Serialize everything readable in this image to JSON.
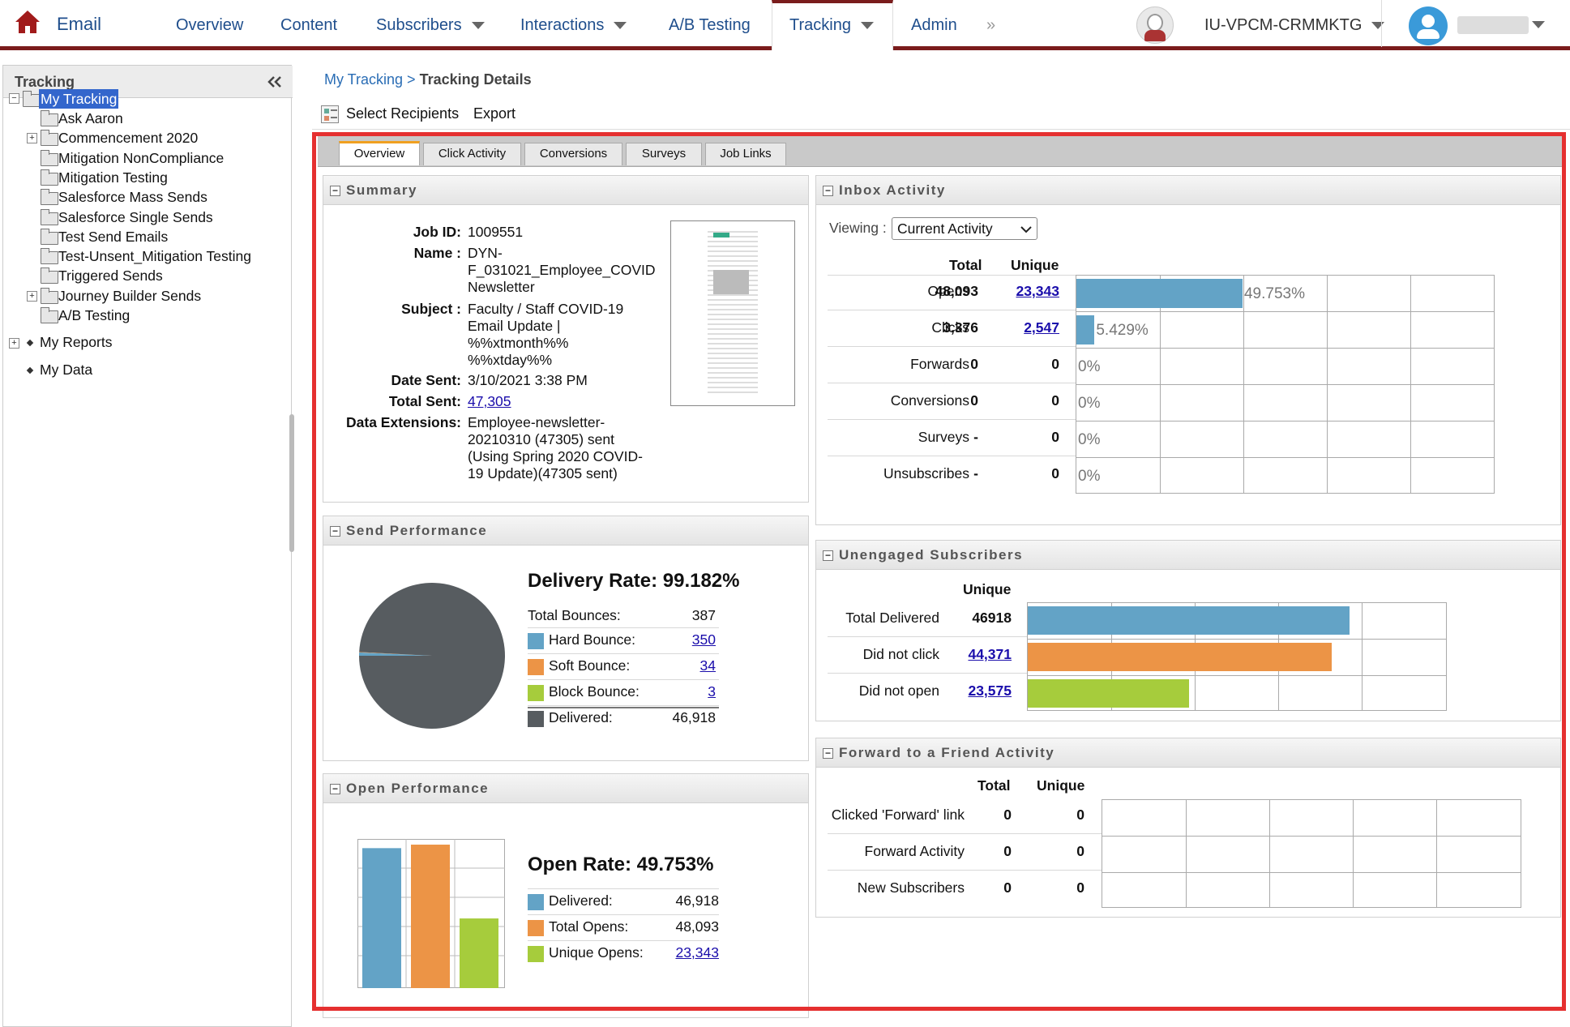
{
  "nav": {
    "app": "Email",
    "items": [
      "Overview",
      "Content",
      "Subscribers",
      "Interactions",
      "A/B Testing",
      "Tracking",
      "Admin"
    ],
    "more": "»",
    "org": "IU-VPCM-CRMMKTG"
  },
  "sidebar": {
    "title": "Tracking",
    "collapse_icon": "double-chevron-left",
    "root": "My Tracking",
    "folders": [
      "Ask Aaron",
      "Commencement 2020",
      "Mitigation NonCompliance",
      "Mitigation Testing",
      "Salesforce Mass Sends",
      "Salesforce Single Sends",
      "Test Send Emails",
      "Test-Unsent_Mitigation Testing",
      "Triggered Sends",
      "Journey Builder Sends",
      "A/B Testing"
    ],
    "reports": "My Reports",
    "data": "My Data"
  },
  "breadcrumb": {
    "link": "My Tracking",
    "sep": ">",
    "current": "Tracking Details"
  },
  "toolbar": {
    "select_recipients": "Select Recipients",
    "export": "Export"
  },
  "tabs": [
    "Overview",
    "Click Activity",
    "Conversions",
    "Surveys",
    "Job Links"
  ],
  "summary": {
    "title": "Summary",
    "job_id_label": "Job ID:",
    "job_id": "1009551",
    "name_label": "Name :",
    "name": [
      "DYN-",
      "F_031021_Employee_COVID",
      "Newsletter"
    ],
    "subject_label": "Subject :",
    "subject": [
      "Faculty / Staff COVID-19",
      "Email Update |",
      "%%xtmonth%%",
      "%%xtday%%"
    ],
    "date_label": "Date Sent:",
    "date": "3/10/2021 3:38 PM",
    "total_label": "Total Sent:",
    "total": "47,305",
    "de_label": "Data Extensions:",
    "de": [
      "Employee-newsletter-",
      "20210310 (47305) sent",
      "(Using Spring 2020 COVID-",
      "19 Update)(47305 sent)"
    ]
  },
  "send_performance": {
    "title": "Send Performance",
    "rate": "Delivery Rate: 99.182%",
    "total_bounces_label": "Total Bounces:",
    "total_bounces": "387",
    "rows": [
      {
        "label": "Hard Bounce:",
        "value": "350",
        "color": "#63a3c6",
        "link": true
      },
      {
        "label": "Soft Bounce:",
        "value": "34",
        "color": "#ec9446",
        "link": true
      },
      {
        "label": "Block Bounce:",
        "value": "3",
        "color": "#a6cc3c",
        "link": true
      },
      {
        "label": "Delivered:",
        "value": "46,918",
        "color": "#575c60",
        "link": false
      }
    ]
  },
  "open_performance": {
    "title": "Open Performance",
    "rate": "Open Rate: 49.753%",
    "rows": [
      {
        "label": "Delivered:",
        "value": "46,918",
        "color": "#63a3c6",
        "link": false
      },
      {
        "label": "Total Opens:",
        "value": "48,093",
        "color": "#ec9446",
        "link": false
      },
      {
        "label": "Unique Opens:",
        "value": "23,343",
        "color": "#a6cc3c",
        "link": true
      }
    ]
  },
  "inbox": {
    "title": "Inbox Activity",
    "viewing_label": "Viewing :",
    "viewing_value": "Current Activity",
    "col_total": "Total",
    "col_unique": "Unique",
    "rows": [
      {
        "label": "Opens",
        "total": "48,093",
        "unique": "23,343",
        "link": true,
        "pct": "49.753%",
        "fraction": 0.49753
      },
      {
        "label": "Clicks",
        "total": "3,376",
        "unique": "2,547",
        "link": true,
        "pct": "5.429%",
        "fraction": 0.05429
      },
      {
        "label": "Forwards",
        "total": "0",
        "unique": "0",
        "link": false,
        "pct": "0%",
        "fraction": 0
      },
      {
        "label": "Conversions",
        "total": "0",
        "unique": "0",
        "link": false,
        "pct": "0%",
        "fraction": 0
      },
      {
        "label": "Surveys",
        "total": "-",
        "unique": "0",
        "link": false,
        "pct": "0%",
        "fraction": 0
      },
      {
        "label": "Unsubscribes",
        "total": "-",
        "unique": "0",
        "link": false,
        "pct": "0%",
        "fraction": 0
      }
    ]
  },
  "unengaged": {
    "title": "Unengaged Subscribers",
    "col_unique": "Unique",
    "rows": [
      {
        "label": "Total Delivered",
        "value": "46918",
        "link": false,
        "color": "#63a3c6"
      },
      {
        "label": "Did not click",
        "value": "44,371",
        "link": true,
        "color": "#ec9446"
      },
      {
        "label": "Did not open",
        "value": "23,575",
        "link": true,
        "color": "#a6cc3c"
      }
    ]
  },
  "forward": {
    "title": "Forward to a Friend Activity",
    "col_total": "Total",
    "col_unique": "Unique",
    "rows": [
      {
        "label": "Clicked 'Forward' link",
        "total": "0",
        "unique": "0"
      },
      {
        "label": "Forward Activity",
        "total": "0",
        "unique": "0"
      },
      {
        "label": "New Subscribers",
        "total": "0",
        "unique": "0"
      }
    ]
  },
  "chart_data": [
    {
      "type": "pie",
      "categories": [
        "Hard Bounce",
        "Soft Bounce",
        "Block Bounce",
        "Delivered"
      ],
      "values": [
        350,
        34,
        3,
        46918
      ]
    },
    {
      "type": "bar",
      "categories": [
        "Delivered",
        "Total Opens",
        "Unique Opens"
      ],
      "values": [
        46918,
        48093,
        23343
      ]
    },
    {
      "type": "bar",
      "orientation": "horizontal",
      "categories": [
        "Opens",
        "Clicks",
        "Forwards",
        "Conversions",
        "Surveys",
        "Unsubscribes"
      ],
      "values": [
        49.753,
        5.429,
        0,
        0,
        0,
        0
      ]
    },
    {
      "type": "bar",
      "orientation": "horizontal",
      "categories": [
        "Total Delivered",
        "Did not click",
        "Did not open"
      ],
      "values": [
        46918,
        44371,
        23575
      ]
    }
  ]
}
